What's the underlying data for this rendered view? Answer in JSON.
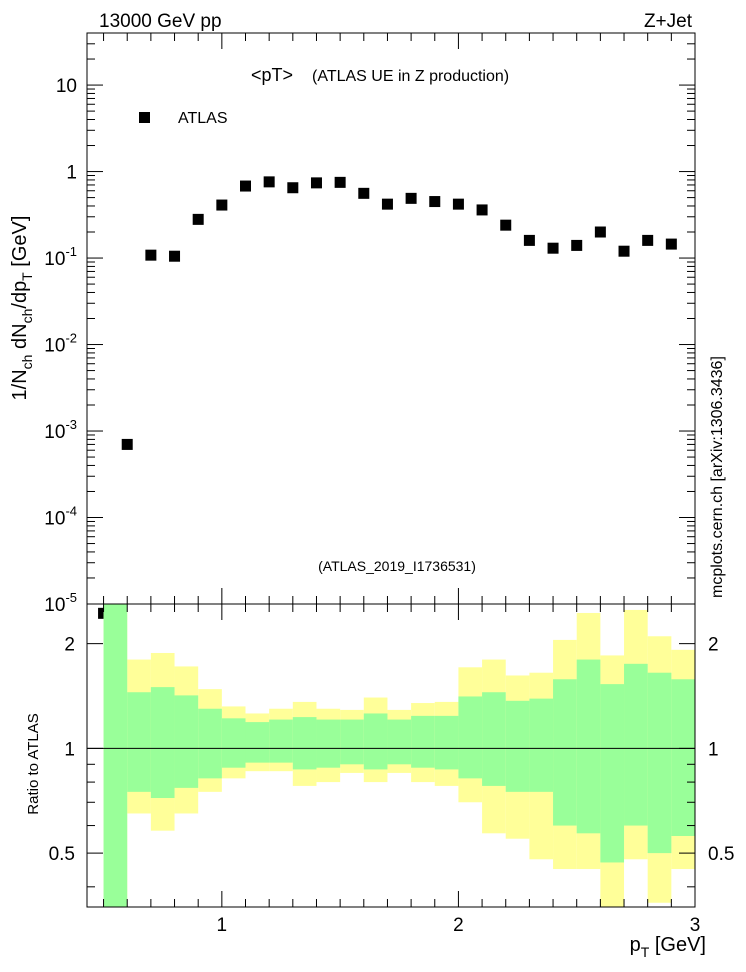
{
  "header": {
    "left": "13000 GeV pp",
    "right": "Z+Jet",
    "side": "mcplots.cern.ch [arXiv:1306.3436]",
    "analysis": "(ATLAS_2019_I1736531)",
    "plot_title": "<pT>",
    "plot_subtitle": "(ATLAS UE in Z production)"
  },
  "colors": {
    "band_inner": "#99ff99",
    "band_outer": "#ffff99",
    "marker": "#000000",
    "analysis_text": "#999999",
    "side_text": "#808080"
  },
  "chart_data": [
    {
      "type": "scatter",
      "title": "<pT> (ATLAS UE in Z production)",
      "ylabel": "1/N_ch dN_ch/dp_T [GeV]",
      "xlabel": "",
      "yscale": "log",
      "xlim": [
        0.43,
        3.0
      ],
      "ylim": [
        1e-05,
        40
      ],
      "legend": {
        "position": "top-left",
        "entries": [
          "ATLAS"
        ]
      },
      "y_ticks": [
        {
          "value": 10,
          "label": "10"
        },
        {
          "value": 1,
          "label": "1"
        },
        {
          "value": 0.1,
          "label": "10^-1"
        },
        {
          "value": 0.01,
          "label": "10^-2"
        },
        {
          "value": 0.001,
          "label": "10^-3"
        },
        {
          "value": 0.0001,
          "label": "10^-4"
        },
        {
          "value": 1e-05,
          "label": "10^-5"
        }
      ],
      "series": [
        {
          "name": "ATLAS",
          "marker": "square",
          "x": [
            0.5,
            0.6,
            0.7,
            0.8,
            0.9,
            1.0,
            1.1,
            1.2,
            1.3,
            1.4,
            1.5,
            1.6,
            1.7,
            1.8,
            1.9,
            2.0,
            2.1,
            2.2,
            2.3,
            2.4,
            2.5,
            2.6,
            2.7,
            2.8,
            2.9
          ],
          "y": [
            7.8e-06,
            0.0007,
            0.108,
            0.105,
            0.28,
            0.41,
            0.68,
            0.76,
            0.65,
            0.74,
            0.75,
            0.56,
            0.42,
            0.49,
            0.45,
            0.42,
            0.36,
            0.24,
            0.16,
            0.13,
            0.14,
            0.2,
            0.12,
            0.16,
            0.145
          ]
        }
      ]
    },
    {
      "type": "area",
      "ylabel": "Ratio to ATLAS",
      "xlabel": "p_T [GeV]",
      "yscale": "log",
      "xlim": [
        0.43,
        3.0
      ],
      "ylim": [
        0.35,
        2.6
      ],
      "x_ticks": [
        {
          "value": 1,
          "label": "1"
        },
        {
          "value": 2,
          "label": "2"
        },
        {
          "value": 3,
          "label": "3"
        }
      ],
      "y_ticks": [
        {
          "value": 0.5,
          "label": "0.5"
        },
        {
          "value": 1,
          "label": "1"
        },
        {
          "value": 2,
          "label": "2"
        }
      ],
      "reference_line": 1,
      "bins": [
        0.55,
        0.65,
        0.75,
        0.85,
        0.95,
        1.05,
        1.15,
        1.25,
        1.35,
        1.45,
        1.55,
        1.65,
        1.75,
        1.85,
        1.95,
        2.05,
        2.15,
        2.25,
        2.35,
        2.45,
        2.55,
        2.65,
        2.75,
        2.85,
        2.95
      ],
      "series": [
        {
          "band": "outer",
          "low": [
            0.35,
            0.65,
            0.58,
            0.65,
            0.75,
            0.82,
            0.86,
            0.86,
            0.78,
            0.8,
            0.85,
            0.8,
            0.85,
            0.8,
            0.78,
            0.7,
            0.57,
            0.55,
            0.48,
            0.45,
            0.45,
            0.35,
            0.48,
            0.36,
            0.45
          ],
          "high": [
            2.6,
            1.8,
            1.88,
            1.72,
            1.48,
            1.32,
            1.26,
            1.3,
            1.36,
            1.3,
            1.29,
            1.4,
            1.29,
            1.35,
            1.36,
            1.71,
            1.8,
            1.62,
            1.65,
            2.05,
            2.45,
            1.85,
            2.5,
            2.1,
            1.92
          ]
        },
        {
          "band": "inner",
          "low": [
            0.35,
            0.75,
            0.72,
            0.77,
            0.82,
            0.88,
            0.91,
            0.91,
            0.87,
            0.88,
            0.9,
            0.87,
            0.9,
            0.88,
            0.87,
            0.82,
            0.78,
            0.75,
            0.75,
            0.6,
            0.57,
            0.47,
            0.6,
            0.5,
            0.56
          ],
          "high": [
            2.6,
            1.45,
            1.5,
            1.42,
            1.3,
            1.22,
            1.19,
            1.21,
            1.23,
            1.21,
            1.21,
            1.26,
            1.21,
            1.24,
            1.24,
            1.41,
            1.45,
            1.37,
            1.39,
            1.58,
            1.8,
            1.53,
            1.75,
            1.65,
            1.58
          ]
        }
      ]
    }
  ]
}
